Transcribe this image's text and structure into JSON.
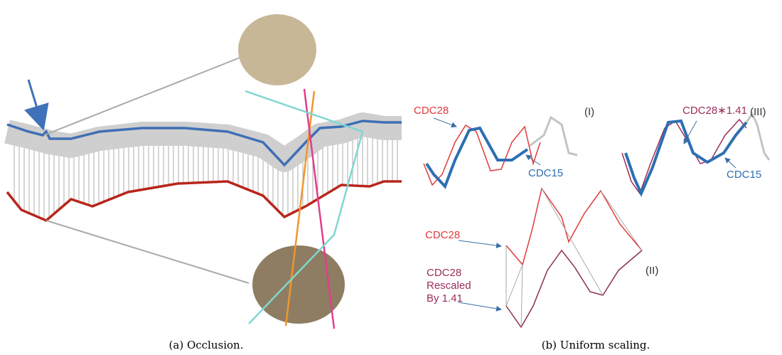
{
  "panels": [
    {
      "caption": "(a) Occlusion."
    },
    {
      "caption": "(b) Uniform scaling.",
      "plots": [
        {
          "label": "(I)",
          "annotations": [
            "CDC28",
            "CDC15"
          ]
        },
        {
          "label": "(III)",
          "annotations": [
            "CDC28∗1.41",
            "CDC15"
          ]
        },
        {
          "label": "(II)",
          "annotations": [
            "CDC28",
            "CDC28",
            "Rescaled",
            "By 1.41"
          ]
        }
      ]
    }
  ]
}
